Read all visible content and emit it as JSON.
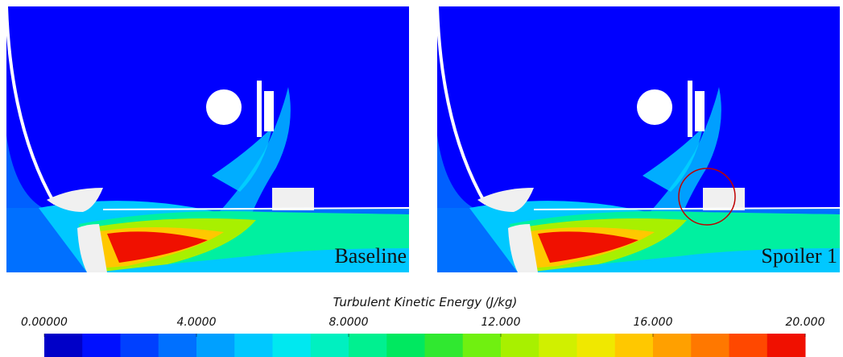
{
  "panels": [
    {
      "label": "Baseline"
    },
    {
      "label": "Spoiler 1"
    }
  ],
  "colorbar": {
    "title": "Turbulent Kinetic Energy (J/kg)",
    "lim": [
      0,
      20
    ],
    "ticks": [
      {
        "value": 0,
        "label": "0.00000"
      },
      {
        "value": 4,
        "label": "4.0000"
      },
      {
        "value": 8,
        "label": "8.0000"
      },
      {
        "value": 12,
        "label": "12.000"
      },
      {
        "value": 16,
        "label": "16.000"
      },
      {
        "value": 20,
        "label": "20.000"
      }
    ],
    "colors": [
      "#0000c8",
      "#0010ff",
      "#0040ff",
      "#0070ff",
      "#00a0ff",
      "#00c8ff",
      "#00e8f0",
      "#00f0c0",
      "#00f090",
      "#00e860",
      "#30e830",
      "#70f010",
      "#a8f000",
      "#d0f000",
      "#f0e800",
      "#ffc800",
      "#ffa000",
      "#ff7800",
      "#ff4800",
      "#f01000"
    ]
  }
}
